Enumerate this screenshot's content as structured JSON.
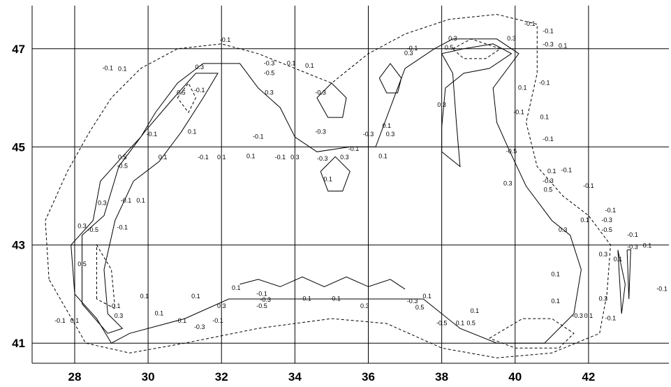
{
  "chart_data": {
    "type": "contour",
    "xlim": [
      26.84,
      44.19
    ],
    "ylim": [
      40.59,
      47.88
    ],
    "xticks": [
      28,
      30,
      32,
      34,
      36,
      38,
      40,
      42
    ],
    "yticks": [
      41,
      43,
      45,
      47
    ],
    "grid": true,
    "contours": [
      {
        "level": 0.1,
        "x": [
          28.0,
          27.9,
          28.5,
          28.7,
          29.3,
          29.8,
          30.2,
          30.8,
          31.5,
          32.5,
          33.0,
          33.6,
          34.0,
          34.6,
          35.5,
          36.2,
          36.6,
          37.0,
          37.8,
          38.3,
          39.5,
          40.1,
          39.4,
          39.5,
          39.8,
          40.3,
          41.0,
          41.5,
          41.8,
          41.6,
          40.8,
          39.5,
          38.5,
          37.5,
          36.0,
          34.0,
          32.2,
          31.0,
          29.5,
          29.0,
          28.6,
          28.0
        ],
        "y": [
          42.0,
          43.0,
          43.5,
          44.3,
          44.8,
          45.2,
          45.7,
          46.3,
          46.7,
          46.7,
          46.2,
          45.8,
          45.2,
          44.9,
          45.0,
          45.0,
          45.8,
          46.6,
          47.0,
          47.2,
          47.2,
          46.9,
          46.2,
          45.5,
          45.0,
          44.2,
          43.5,
          43.2,
          42.5,
          41.6,
          41.0,
          41.0,
          41.3,
          41.9,
          41.9,
          41.9,
          41.9,
          41.5,
          41.2,
          41.0,
          41.5,
          42.0
        ]
      },
      {
        "level": -0.1,
        "x": [
          27.3,
          27.2,
          27.8,
          28.4,
          29.0,
          29.8,
          30.8,
          32.0,
          33.0,
          34.0,
          35.0,
          36.0,
          37.0,
          38.2,
          39.5,
          40.6,
          40.6,
          40.3,
          40.6,
          41.3,
          42.0,
          42.6,
          42.5,
          42.3,
          41.0,
          39.5,
          38.0,
          36.5,
          35.0,
          33.0,
          31.0,
          29.5,
          28.3,
          27.3
        ],
        "y": [
          42.3,
          43.5,
          44.5,
          45.3,
          46.0,
          46.6,
          47.0,
          47.1,
          46.9,
          46.6,
          46.3,
          46.9,
          47.3,
          47.6,
          47.7,
          47.5,
          46.5,
          45.5,
          44.6,
          44.0,
          43.6,
          43.0,
          42.0,
          41.2,
          40.8,
          40.7,
          40.9,
          41.4,
          41.5,
          41.3,
          41.0,
          40.8,
          41.0,
          42.3
        ]
      },
      {
        "level": 0.3,
        "x": [
          28.2,
          28.2,
          28.8,
          29.2,
          29.9,
          30.7,
          31.3,
          31.9,
          31.5,
          30.9,
          30.3,
          29.6,
          29.1,
          28.8,
          28.9,
          29.3,
          28.9,
          28.2
        ],
        "y": [
          41.8,
          43.2,
          43.6,
          44.6,
          45.3,
          46.0,
          46.5,
          46.5,
          46.0,
          45.3,
          44.7,
          44.3,
          43.5,
          42.5,
          41.6,
          41.3,
          41.2,
          41.8
        ]
      },
      {
        "level": -0.3,
        "x": [
          28.6,
          28.6,
          29.0,
          29.1,
          28.6
        ],
        "y": [
          41.9,
          43.0,
          42.5,
          41.7,
          41.9
        ]
      },
      {
        "level": 0.3,
        "x": [
          38.0,
          38.6,
          39.4,
          39.9,
          39.3,
          38.6,
          38.1,
          38.0,
          38.0,
          38.5,
          38.4,
          38.3,
          38.0
        ],
        "y": [
          46.9,
          47.0,
          47.1,
          46.9,
          46.6,
          46.5,
          46.2,
          45.4,
          44.9,
          44.6,
          45.5,
          46.5,
          46.9
        ]
      },
      {
        "level": 0.3,
        "x": [
          36.3,
          36.6,
          36.9,
          36.8,
          36.5,
          36.3
        ],
        "y": [
          46.4,
          46.7,
          46.4,
          46.1,
          46.1,
          46.4
        ]
      },
      {
        "level": 0.3,
        "x": [
          34.6,
          35.0,
          35.4,
          35.3,
          34.9,
          34.6
        ],
        "y": [
          46.0,
          46.3,
          46.0,
          45.6,
          45.6,
          46.0
        ]
      },
      {
        "level": 0.5,
        "x": [
          34.7,
          35.1,
          35.5,
          35.3,
          34.9,
          34.7
        ],
        "y": [
          44.5,
          44.8,
          44.5,
          44.1,
          44.1,
          44.5
        ]
      },
      {
        "level": -0.3,
        "x": [
          30.8,
          31.1,
          31.3,
          31.1,
          30.8
        ],
        "y": [
          46.0,
          46.3,
          46.0,
          45.7,
          46.0
        ]
      },
      {
        "level": 0.1,
        "x": [
          32.5,
          33.0,
          33.6,
          34.2,
          34.8,
          35.4,
          36.0,
          36.6,
          37.0
        ],
        "y": [
          42.2,
          42.3,
          42.15,
          42.35,
          42.15,
          42.35,
          42.15,
          42.3,
          42.1
        ]
      },
      {
        "level": -0.1,
        "x": [
          39.3,
          40.2,
          41.0,
          41.6,
          41.2,
          40.0,
          39.3
        ],
        "y": [
          41.1,
          41.5,
          41.5,
          41.2,
          40.9,
          40.9,
          41.1
        ]
      },
      {
        "level": 0.1,
        "x": [
          42.8,
          43.0,
          42.9,
          42.8
        ],
        "y": [
          42.9,
          42.2,
          41.6,
          42.9
        ]
      },
      {
        "level": 0.1,
        "x": [
          43.05,
          43.15,
          43.1,
          43.05
        ],
        "y": [
          42.9,
          42.9,
          41.9,
          42.9
        ]
      },
      {
        "level": -0.5,
        "x": [
          38.3,
          38.8,
          39.6,
          39.2,
          38.6,
          38.3
        ],
        "y": [
          47.0,
          47.2,
          47.0,
          46.8,
          46.8,
          47.0
        ]
      }
    ],
    "labels": [
      {
        "level": -0.1,
        "x": 32.1,
        "y": 47.17
      },
      {
        "level": -0.1,
        "x": 28.9,
        "y": 46.6
      },
      {
        "level": 0.1,
        "x": 29.3,
        "y": 46.58
      },
      {
        "level": -0.3,
        "x": 33.3,
        "y": 46.7
      },
      {
        "level": -0.5,
        "x": 33.3,
        "y": 46.5
      },
      {
        "level": 0.1,
        "x": 33.9,
        "y": 46.7
      },
      {
        "level": 0.1,
        "x": 34.4,
        "y": 46.65
      },
      {
        "level": 0.3,
        "x": 31.4,
        "y": 46.62
      },
      {
        "level": 0.5,
        "x": 30.9,
        "y": 46.1
      },
      {
        "level": -0.1,
        "x": 31.4,
        "y": 46.15
      },
      {
        "level": 0.3,
        "x": 33.3,
        "y": 46.1
      },
      {
        "level": -0.3,
        "x": 34.7,
        "y": 46.1
      },
      {
        "level": 0.3,
        "x": 37.1,
        "y": 46.9
      },
      {
        "level": -0.1,
        "x": 37.2,
        "y": 47.0
      },
      {
        "level": -0.1,
        "x": 40.4,
        "y": 47.5
      },
      {
        "level": -0.1,
        "x": 40.9,
        "y": 47.35
      },
      {
        "level": 0.3,
        "x": 38.3,
        "y": 47.2
      },
      {
        "level": 0.5,
        "x": 38.2,
        "y": 47.02
      },
      {
        "level": -0.3,
        "x": 40.9,
        "y": 47.08
      },
      {
        "level": 0.1,
        "x": 41.3,
        "y": 47.05
      },
      {
        "level": 0.3,
        "x": 39.9,
        "y": 47.2
      },
      {
        "level": -0.1,
        "x": 40.8,
        "y": 46.3
      },
      {
        "level": 0.1,
        "x": 40.2,
        "y": 46.2
      },
      {
        "level": 0.3,
        "x": 38.0,
        "y": 45.85
      },
      {
        "level": -0.1,
        "x": 40.1,
        "y": 45.7
      },
      {
        "level": 0.1,
        "x": 40.8,
        "y": 45.6
      },
      {
        "level": -0.1,
        "x": 40.9,
        "y": 45.15
      },
      {
        "level": 0.1,
        "x": 41.0,
        "y": 44.5
      },
      {
        "level": -0.1,
        "x": 41.4,
        "y": 44.52
      },
      {
        "level": -0.3,
        "x": 40.9,
        "y": 44.3
      },
      {
        "level": 0.5,
        "x": 40.9,
        "y": 44.12
      },
      {
        "level": -0.1,
        "x": 42.0,
        "y": 44.2
      },
      {
        "level": 0.3,
        "x": 39.8,
        "y": 44.25
      },
      {
        "level": -0.5,
        "x": 39.9,
        "y": 44.9
      },
      {
        "level": -0.1,
        "x": 42.6,
        "y": 43.7
      },
      {
        "level": -0.3,
        "x": 42.5,
        "y": 43.5
      },
      {
        "level": -0.5,
        "x": 42.5,
        "y": 43.3
      },
      {
        "level": 0.1,
        "x": 41.9,
        "y": 43.5
      },
      {
        "level": 0.3,
        "x": 41.3,
        "y": 43.3
      },
      {
        "level": -0.1,
        "x": 43.2,
        "y": 43.2
      },
      {
        "level": -0.3,
        "x": 43.2,
        "y": 42.95
      },
      {
        "level": 0.1,
        "x": 43.6,
        "y": 42.98
      },
      {
        "level": 0.3,
        "x": 42.4,
        "y": 42.8
      },
      {
        "level": 0.1,
        "x": 42.8,
        "y": 42.7
      },
      {
        "level": -0.1,
        "x": 44.0,
        "y": 42.1
      },
      {
        "level": 0.1,
        "x": 41.1,
        "y": 42.4
      },
      {
        "level": 0.1,
        "x": 41.1,
        "y": 41.85
      },
      {
        "level": 0.3,
        "x": 42.4,
        "y": 41.9
      },
      {
        "level": -0.3,
        "x": 41.7,
        "y": 41.55
      },
      {
        "level": 0.1,
        "x": 42.0,
        "y": 41.55
      },
      {
        "level": -0.1,
        "x": 42.6,
        "y": 41.5
      },
      {
        "level": 0.1,
        "x": 38.9,
        "y": 41.65
      },
      {
        "level": 0.5,
        "x": 38.8,
        "y": 41.4
      },
      {
        "level": -0.5,
        "x": 38.0,
        "y": 41.4
      },
      {
        "level": 0.1,
        "x": 38.5,
        "y": 41.4
      },
      {
        "level": 0.1,
        "x": 32.4,
        "y": 42.12
      },
      {
        "level": -0.1,
        "x": 33.1,
        "y": 42.0
      },
      {
        "level": -0.3,
        "x": 33.2,
        "y": 41.88
      },
      {
        "level": -0.5,
        "x": 33.1,
        "y": 41.75
      },
      {
        "level": -0.1,
        "x": 34.3,
        "y": 41.9
      },
      {
        "level": -0.1,
        "x": 35.1,
        "y": 41.9
      },
      {
        "level": 0.3,
        "x": 35.9,
        "y": 41.75
      },
      {
        "level": -0.3,
        "x": 37.2,
        "y": 41.85
      },
      {
        "level": 0.1,
        "x": 37.6,
        "y": 41.95
      },
      {
        "level": 0.5,
        "x": 37.4,
        "y": 41.72
      },
      {
        "level": 0.1,
        "x": 29.9,
        "y": 41.95
      },
      {
        "level": 0.1,
        "x": 31.3,
        "y": 41.95
      },
      {
        "level": 0.3,
        "x": 32.0,
        "y": 41.75
      },
      {
        "level": -0.1,
        "x": 30.9,
        "y": 41.45
      },
      {
        "level": -0.3,
        "x": 31.4,
        "y": 41.32
      },
      {
        "level": 0.1,
        "x": 30.3,
        "y": 41.6
      },
      {
        "level": -0.1,
        "x": 31.9,
        "y": 41.45
      },
      {
        "level": -0.1,
        "x": 29.1,
        "y": 41.75
      },
      {
        "level": 0.3,
        "x": 29.2,
        "y": 41.55
      },
      {
        "level": -0.1,
        "x": 27.6,
        "y": 41.45
      },
      {
        "level": 0.1,
        "x": 28.0,
        "y": 41.45
      },
      {
        "level": 0.5,
        "x": 28.2,
        "y": 42.6
      },
      {
        "level": 0.3,
        "x": 28.2,
        "y": 43.38
      },
      {
        "level": -0.5,
        "x": 28.5,
        "y": 43.3
      },
      {
        "level": -0.1,
        "x": 29.3,
        "y": 43.35
      },
      {
        "level": 0.3,
        "x": 28.75,
        "y": 43.85
      },
      {
        "level": -0.1,
        "x": 29.4,
        "y": 43.9
      },
      {
        "level": 0.1,
        "x": 29.8,
        "y": 43.9
      },
      {
        "level": -0.5,
        "x": 29.3,
        "y": 44.6
      },
      {
        "level": 0.5,
        "x": 29.3,
        "y": 44.78
      },
      {
        "level": 0.1,
        "x": 30.4,
        "y": 44.78
      },
      {
        "level": -0.1,
        "x": 30.1,
        "y": 45.25
      },
      {
        "level": 0.1,
        "x": 31.2,
        "y": 45.3
      },
      {
        "level": -0.1,
        "x": 31.5,
        "y": 44.78
      },
      {
        "level": 0.1,
        "x": 32.0,
        "y": 44.78
      },
      {
        "level": -0.1,
        "x": 33.0,
        "y": 45.2
      },
      {
        "level": 0.1,
        "x": 32.8,
        "y": 44.8
      },
      {
        "level": -0.1,
        "x": 33.6,
        "y": 44.78
      },
      {
        "level": 0.3,
        "x": 34.0,
        "y": 44.78
      },
      {
        "level": -0.3,
        "x": 34.7,
        "y": 45.3
      },
      {
        "level": 0.1,
        "x": 34.9,
        "y": 44.33
      },
      {
        "level": -0.3,
        "x": 34.75,
        "y": 44.75
      },
      {
        "level": 0.3,
        "x": 35.35,
        "y": 44.78
      },
      {
        "level": -0.1,
        "x": 35.6,
        "y": 44.95
      },
      {
        "level": -0.3,
        "x": 36.0,
        "y": 45.25
      },
      {
        "level": 0.1,
        "x": 36.5,
        "y": 45.42
      },
      {
        "level": 0.3,
        "x": 36.6,
        "y": 45.25
      },
      {
        "level": 0.1,
        "x": 36.4,
        "y": 44.8
      }
    ]
  }
}
